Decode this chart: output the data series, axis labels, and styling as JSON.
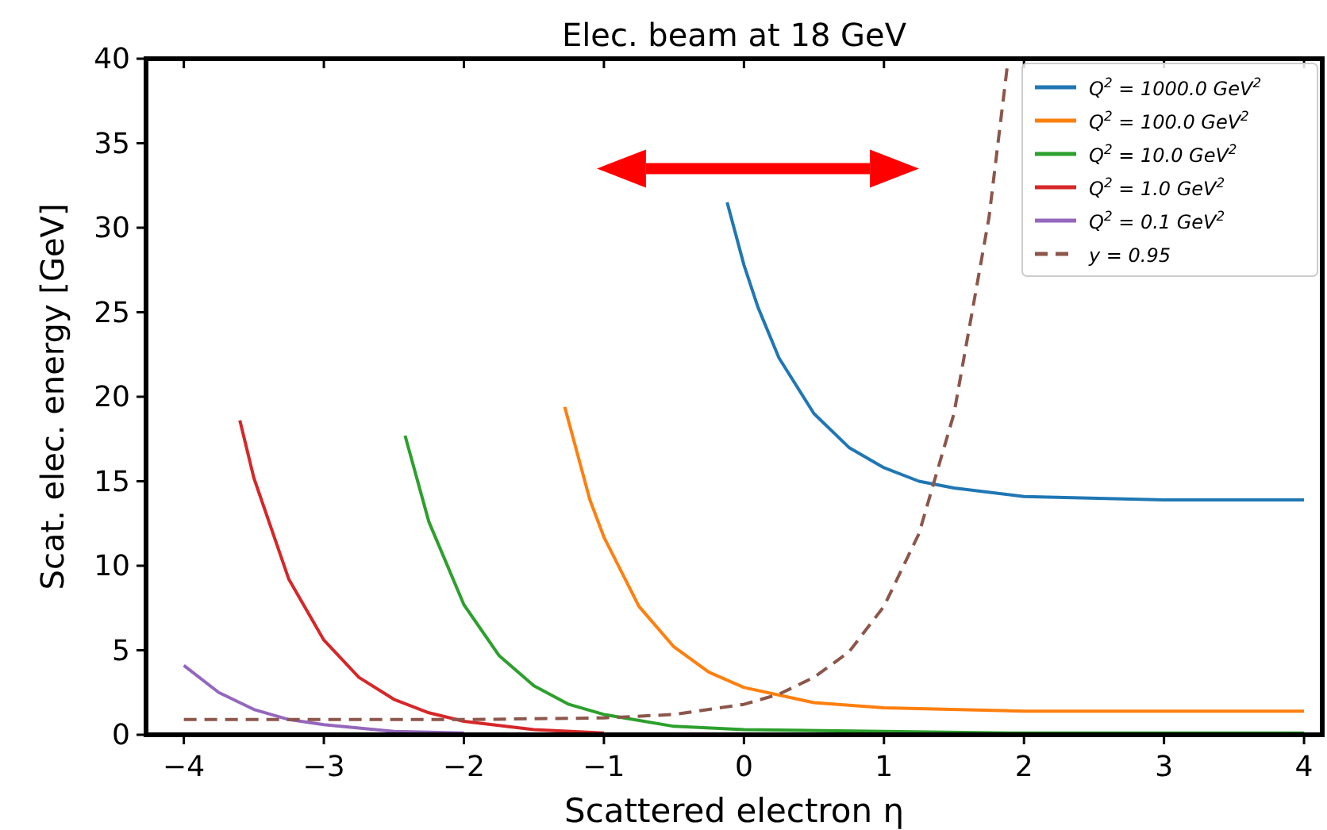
{
  "chart_data": {
    "type": "line",
    "title": "Elec. beam at 18 GeV",
    "xlabel": "Scattered electron η",
    "ylabel": "Scat. elec. energy [GeV]",
    "xlim": [
      -4.27,
      4.13
    ],
    "ylim": [
      0,
      40
    ],
    "xticks": [
      {
        "value": -4,
        "label": "−4"
      },
      {
        "value": -3,
        "label": "−3"
      },
      {
        "value": -2,
        "label": "−2"
      },
      {
        "value": -1,
        "label": "−1"
      },
      0,
      1,
      2,
      3,
      4
    ],
    "yticks": [
      0,
      5,
      10,
      15,
      20,
      25,
      30,
      35,
      40
    ],
    "legend": "top right",
    "grid": false,
    "marker": "none",
    "series": [
      {
        "name": "Q$^{2}$ = 1000.0 GeV$^{2}$",
        "color": "#1f77b4",
        "x": [
          -0.12,
          0,
          0.1,
          0.25,
          0.5,
          0.75,
          1,
          1.25,
          1.5,
          2,
          3,
          4
        ],
        "values": [
          31.5,
          27.8,
          25.3,
          22.3,
          19.0,
          17.0,
          15.8,
          15.0,
          14.6,
          14.1,
          13.9,
          13.9
        ]
      },
      {
        "name": "Q$^{2}$ = 100.0 GeV$^{2}$",
        "color": "#ff7f0e",
        "x": [
          -1.28,
          -1.1,
          -1,
          -0.75,
          -0.5,
          -0.25,
          0,
          0.5,
          1,
          2,
          3,
          4
        ],
        "values": [
          19.4,
          13.9,
          11.7,
          7.6,
          5.2,
          3.7,
          2.8,
          1.9,
          1.6,
          1.4,
          1.4,
          1.4
        ]
      },
      {
        "name": "Q$^{2}$ = 10.0 GeV$^{2}$",
        "color": "#2ca02c",
        "x": [
          -2.42,
          -2.25,
          -2,
          -1.75,
          -1.5,
          -1.25,
          -1,
          -0.5,
          0,
          1,
          2,
          4
        ],
        "values": [
          17.7,
          12.6,
          7.7,
          4.7,
          2.9,
          1.8,
          1.2,
          0.5,
          0.3,
          0.2,
          0.1,
          0.1
        ]
      },
      {
        "name": "Q$^{2}$ = 1.0 GeV$^{2}$",
        "color": "#d62728",
        "x": [
          -3.6,
          -3.5,
          -3.25,
          -3,
          -2.75,
          -2.5,
          -2.25,
          -2,
          -1.5,
          -1
        ],
        "values": [
          18.6,
          15.2,
          9.2,
          5.6,
          3.4,
          2.1,
          1.3,
          0.8,
          0.3,
          0.1
        ]
      },
      {
        "name": "Q$^{2}$ = 0.1 GeV$^{2}$",
        "color": "#9467bd",
        "x": [
          -4,
          -3.75,
          -3.5,
          -3.25,
          -3,
          -2.5,
          -2
        ],
        "values": [
          4.1,
          2.5,
          1.5,
          0.9,
          0.6,
          0.2,
          0.1
        ]
      },
      {
        "name": "y = 0.95",
        "color": "#8c564b",
        "line_style": "dashed",
        "x": [
          -4,
          -2,
          -1,
          -0.5,
          0,
          0.25,
          0.5,
          0.75,
          1,
          1.25,
          1.5,
          1.75,
          1.88
        ],
        "values": [
          0.9,
          0.9,
          1.0,
          1.2,
          1.8,
          2.4,
          3.4,
          4.9,
          7.6,
          11.9,
          19.0,
          30.6,
          39.5
        ]
      }
    ]
  }
}
